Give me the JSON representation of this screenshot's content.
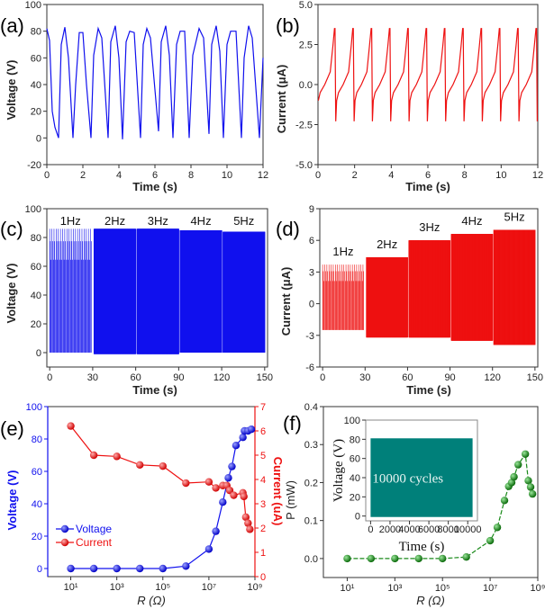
{
  "chart_data": [
    {
      "id": "a",
      "panel_label": "(a)",
      "type": "line",
      "xlabel": "Time (s)",
      "ylabel": "Voltage (V)",
      "xlim": [
        0,
        12
      ],
      "ylim": [
        -20,
        100
      ],
      "xticks": [
        0,
        2,
        4,
        6,
        8,
        10,
        12
      ],
      "yticks": [
        -20,
        0,
        20,
        40,
        60,
        80,
        100
      ],
      "color": "#1010ee",
      "x": [
        0,
        0.15,
        0.3,
        0.45,
        0.65,
        0.8,
        1.0,
        1.2,
        1.45,
        1.6,
        1.8,
        2.0,
        2.2,
        2.45,
        2.6,
        2.85,
        3.05,
        3.4,
        3.55,
        3.8,
        4.0,
        4.2,
        4.4,
        4.6,
        4.85,
        5.2,
        5.35,
        5.55,
        5.75,
        6.2,
        6.35,
        6.6,
        6.8,
        7.0,
        7.2,
        7.4,
        7.65,
        7.9,
        8.1,
        8.45,
        8.7,
        9.0,
        9.15,
        9.4,
        9.6,
        9.8,
        10.0,
        10.2,
        10.5,
        10.8,
        10.95,
        11.2,
        11.4,
        11.8,
        12
      ],
      "y": [
        82,
        73,
        20,
        8,
        0,
        70,
        83,
        60,
        0,
        40,
        79,
        79,
        40,
        0,
        62,
        82,
        75,
        0,
        72,
        84,
        60,
        -1,
        72,
        80,
        79,
        0,
        70,
        82,
        75,
        5,
        72,
        84,
        62,
        0,
        70,
        80,
        80,
        0,
        62,
        82,
        75,
        3,
        70,
        84,
        65,
        0,
        70,
        80,
        80,
        0,
        60,
        84,
        75,
        0,
        60
      ]
    },
    {
      "id": "b",
      "panel_label": "(b)",
      "type": "line",
      "xlabel": "Time (s)",
      "ylabel": "Current (μA)",
      "xlim": [
        0,
        12
      ],
      "ylim": [
        -5,
        5
      ],
      "xticks": [
        0,
        2,
        4,
        6,
        8,
        10,
        12
      ],
      "yticks": [
        -5,
        -2.5,
        0,
        2.5,
        5
      ],
      "ytick_labels": [
        "-5.0",
        "-2.5",
        "0.0",
        "2.5",
        "5.0"
      ],
      "color": "#ee1111",
      "waveform_cycle": {
        "period_s": 1,
        "first_cycle_start_s": -0.03,
        "cycles": 13,
        "phase_s": [
          0,
          0.05,
          0.15,
          0.4,
          0.7,
          0.85,
          0.93,
          0.96
        ],
        "value": [
          -2.3,
          -1.0,
          -0.5,
          0.0,
          0.8,
          2.5,
          3.5,
          3.5
        ]
      }
    },
    {
      "id": "c",
      "panel_label": "(c)",
      "type": "line",
      "xlabel": "Time (s)",
      "ylabel": "Voltage (V)",
      "xlim": [
        -2,
        152
      ],
      "ylim": [
        -10,
        100
      ],
      "xticks": [
        0,
        30,
        60,
        90,
        120,
        150
      ],
      "yticks": [
        0,
        20,
        40,
        60,
        80,
        100
      ],
      "color": "#1010ee",
      "segments": [
        {
          "label": "1Hz",
          "t": [
            0,
            29
          ],
          "freq_hz": 1,
          "max": 86,
          "min": 0
        },
        {
          "label": "2Hz",
          "t": [
            31,
            60
          ],
          "freq_hz": 2,
          "max": 86,
          "min": -1
        },
        {
          "label": "3Hz",
          "t": [
            61,
            90
          ],
          "freq_hz": 3,
          "max": 86,
          "min": -1
        },
        {
          "label": "4Hz",
          "t": [
            91,
            120
          ],
          "freq_hz": 4,
          "max": 85,
          "min": 0
        },
        {
          "label": "5Hz",
          "t": [
            121,
            150
          ],
          "freq_hz": 5,
          "max": 84,
          "min": 0
        }
      ]
    },
    {
      "id": "d",
      "panel_label": "(d)",
      "type": "line",
      "xlabel": "Time (s)",
      "ylabel": "Current (μA)",
      "xlim": [
        -2,
        152
      ],
      "ylim": [
        -6,
        9
      ],
      "xticks": [
        0,
        30,
        60,
        90,
        120,
        150
      ],
      "yticks": [
        -6,
        -3,
        0,
        3,
        6,
        9
      ],
      "color": "#ee1111",
      "segments": [
        {
          "label": "1Hz",
          "t": [
            0,
            29
          ],
          "freq_hz": 1,
          "max": 3.7,
          "min": -2.5
        },
        {
          "label": "2Hz",
          "t": [
            31,
            60
          ],
          "freq_hz": 2,
          "max": 4.4,
          "min": -3.2
        },
        {
          "label": "3Hz",
          "t": [
            61,
            90
          ],
          "freq_hz": 3,
          "max": 6.0,
          "min": -3.2
        },
        {
          "label": "4Hz",
          "t": [
            91,
            120
          ],
          "freq_hz": 4,
          "max": 6.6,
          "min": -3.5
        },
        {
          "label": "5Hz",
          "t": [
            121,
            150
          ],
          "freq_hz": 5,
          "max": 7.0,
          "min": -3.9
        }
      ]
    },
    {
      "id": "e",
      "panel_label": "(e)",
      "type": "scatter",
      "xlabel": "R (Ω)",
      "xscale": "log",
      "xlim": [
        1,
        1000000000
      ],
      "xticks": [
        10,
        1000,
        100000,
        10000000,
        1000000000
      ],
      "xtick_labels": [
        "10¹",
        "10³",
        "10⁵",
        "10⁷",
        "10⁹"
      ],
      "ylabel": "Voltage (V)",
      "ylim": [
        -5,
        100
      ],
      "yticks": [
        0,
        20,
        40,
        60,
        80,
        100
      ],
      "ylabel_right": "Current (uA)",
      "ylim_right": [
        0,
        7
      ],
      "yticks_right": [
        0,
        1,
        2,
        3,
        4,
        5,
        6,
        7
      ],
      "legend": "bottom-left",
      "series": [
        {
          "name": "Voltage",
          "axis": "left",
          "color": "#1010ee",
          "x": [
            10,
            100,
            1000,
            10000,
            100000,
            1000000,
            10000000,
            20000000,
            40000000,
            70000000,
            100000000,
            150000000,
            300000000,
            350000000,
            500000000,
            700000000
          ],
          "y": [
            0,
            0,
            0,
            0,
            0,
            1.5,
            12,
            23,
            41,
            56,
            63,
            76,
            81,
            85,
            85,
            86
          ]
        },
        {
          "name": "Current",
          "axis": "right",
          "color": "#ee1111",
          "x": [
            10,
            100,
            1000,
            10000,
            100000,
            1000000,
            10000000,
            20000000,
            40000000,
            60000000,
            80000000,
            120000000,
            300000000,
            330000000,
            400000000,
            500000000,
            600000000
          ],
          "y": [
            6.2,
            5.0,
            4.95,
            4.6,
            4.55,
            3.85,
            3.9,
            3.65,
            3.75,
            3.75,
            3.55,
            3.35,
            3.45,
            3.3,
            2.45,
            2.2,
            1.95
          ]
        }
      ]
    },
    {
      "id": "f",
      "panel_label": "(f)",
      "type": "scatter",
      "xlabel": "R (Ω)",
      "xscale": "log",
      "xlim": [
        1,
        1000000000
      ],
      "xticks": [
        10,
        1000,
        100000,
        10000000,
        1000000000
      ],
      "xtick_labels": [
        "10¹",
        "10³",
        "10⁵",
        "10⁷",
        "10⁹"
      ],
      "ylabel": "P (mW)",
      "ylim": [
        -0.05,
        0.4
      ],
      "yticks": [
        0,
        0.1,
        0.2,
        0.3,
        0.4
      ],
      "ytick_labels": [
        "0.0",
        "0.1",
        "0.2",
        "0.3",
        "0.4"
      ],
      "color": "#1a8a1a",
      "x": [
        10,
        100,
        1000,
        10000,
        100000,
        1000000,
        10000000,
        20000000,
        40000000,
        60000000,
        80000000,
        100000000,
        150000000,
        300000000,
        400000000,
        500000000,
        600000000
      ],
      "y": [
        0,
        0,
        0,
        0,
        0,
        0.004,
        0.047,
        0.082,
        0.153,
        0.19,
        0.2,
        0.215,
        0.247,
        0.275,
        0.205,
        0.188,
        0.17
      ],
      "inset": {
        "type": "area",
        "xlabel": "Time (s)",
        "ylabel": "Voltage (V)",
        "xlim": [
          -500,
          11000
        ],
        "ylim": [
          -5,
          100
        ],
        "xticks": [
          0,
          2000,
          4000,
          6000,
          8000,
          10000
        ],
        "yticks": [
          0,
          20,
          40,
          60,
          80,
          100
        ],
        "band": {
          "t": [
            0,
            10500
          ],
          "min": -1,
          "max": 81
        },
        "color": "#00807a",
        "annotation": "10000  cycles"
      }
    }
  ]
}
